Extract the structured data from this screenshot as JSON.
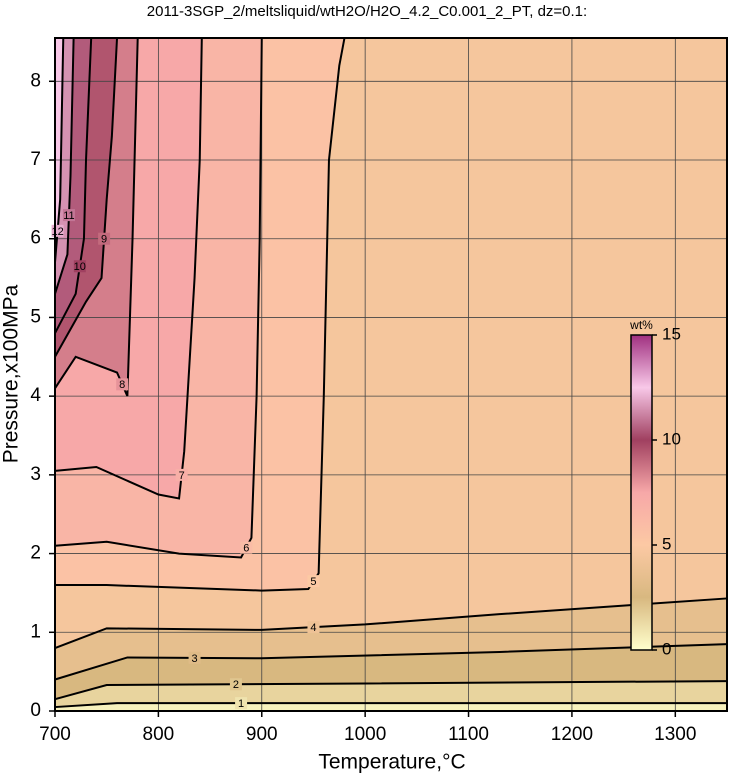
{
  "chart_data": {
    "type": "contour",
    "title": "2011-3SGP_2/meltsliquid/wtH2O/H2O_4.2_C0.001_2_PT, dz=0.1:",
    "x_label": "Temperature,°C",
    "y_label": "Pressure,x100MPa",
    "xlim": [
      700,
      1350
    ],
    "ylim": [
      0,
      8.55
    ],
    "xticks": [
      700,
      800,
      900,
      1000,
      1100,
      1200,
      1300
    ],
    "yticks": [
      0,
      1,
      2,
      3,
      4,
      5,
      6,
      7,
      8
    ],
    "grid": true,
    "contours": [
      {
        "level": 1,
        "x": [
          700,
          760,
          1000,
          1350
        ],
        "y": [
          0.05,
          0.1,
          0.1,
          0.1
        ]
      },
      {
        "level": 2,
        "x": [
          700,
          750,
          1000,
          1350
        ],
        "y": [
          0.15,
          0.33,
          0.35,
          0.38
        ]
      },
      {
        "level": 3,
        "x": [
          700,
          770,
          900,
          1130,
          1350
        ],
        "y": [
          0.4,
          0.68,
          0.67,
          0.75,
          0.85
        ]
      },
      {
        "level": 4,
        "x": [
          700,
          750,
          900,
          1000,
          1130,
          1350
        ],
        "y": [
          0.8,
          1.05,
          1.03,
          1.1,
          1.23,
          1.43
        ]
      },
      {
        "level": 5,
        "x": [
          700,
          750,
          900,
          945,
          955,
          960,
          965,
          975,
          980
        ],
        "y": [
          1.6,
          1.6,
          1.53,
          1.55,
          1.75,
          4,
          7,
          8.2,
          8.55
        ]
      },
      {
        "level": 6,
        "x": [
          700,
          750,
          820,
          880,
          890,
          895,
          898,
          900
        ],
        "y": [
          2.1,
          2.15,
          2.0,
          1.95,
          2.2,
          4,
          6,
          8.55
        ]
      },
      {
        "level": 7,
        "x": [
          700,
          740,
          800,
          820,
          825,
          835,
          840,
          842
        ],
        "y": [
          3.05,
          3.1,
          2.75,
          2.7,
          3.3,
          5.5,
          7,
          8.55
        ]
      },
      {
        "level": 8,
        "x": [
          700,
          720,
          760,
          770,
          775,
          780
        ],
        "y": [
          4.1,
          4.5,
          4.3,
          4.0,
          6,
          8.55
        ]
      },
      {
        "level": 9,
        "x": [
          700,
          730,
          745,
          750,
          755,
          760
        ],
        "y": [
          4.5,
          5.2,
          5.5,
          6.5,
          7.3,
          8.55
        ]
      },
      {
        "level": 10,
        "x": [
          700,
          720,
          728,
          730,
          735
        ],
        "y": [
          4.8,
          5.3,
          6,
          7,
          8.55
        ]
      },
      {
        "level": 11,
        "x": [
          700,
          712,
          715,
          718
        ],
        "y": [
          5.3,
          5.8,
          6.8,
          8.55
        ]
      },
      {
        "level": 12,
        "x": [
          700,
          705,
          708
        ],
        "y": [
          5.7,
          6.5,
          8.55
        ]
      }
    ],
    "colorbar": {
      "label": "wt%",
      "clim": [
        0,
        15
      ],
      "ticks": [
        0,
        5,
        10,
        15
      ],
      "colormap": [
        "#ffffcc",
        "#d8b880",
        "#fcc9a4",
        "#f7a8a8",
        "#a04060",
        "#f8c8e8",
        "#a03080"
      ]
    }
  }
}
